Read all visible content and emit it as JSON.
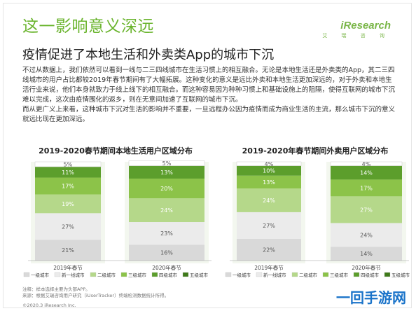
{
  "header": {
    "headline": "这一影响意义深远",
    "subhead": "疫情促进了本地生活和外卖类App的城市下沉",
    "logo_word": "iResearch",
    "logo_sub": "艾 瑞 咨 询"
  },
  "body": {
    "paragraph_1": "不过从数据上，我们依然可以看到一线与二三四线城市在生活习惯上的相互融合。无论是本地生活还是外卖类的App，其二三四线城市的用户占比都较2019年春节期间有了大幅拓展。这种变化的意义是远比外卖和本地生活更加深远的，对于外卖和本地生活行业来说，他们本身就致力于线上线下的相互融合。而这种容易因为种种习惯上和基础设施上的阻隔，使得互联网的城市下沉难以完成，这次由疫情围化的返乡，则在无意间加速了互联网的城市下沉。",
    "paragraph_2": "而从更广义上来看，这种城市下沉对生活的影响并不重要，一旦远程办公因为疫情而成为商业生活的主流，那么城市下沉的意义就远比现在更加深远。"
  },
  "colors": {
    "tier1": "#d9d9d9",
    "tier2": "#ebebeb",
    "tier3": "#b5d88a",
    "tier4": "#8cc349",
    "tier5": "#5c9e2c",
    "accent": "#6ab42d"
  },
  "chart_data": [
    {
      "type": "bar",
      "stacked": true,
      "title": "2019-2020春节期间本地生活用户区域分布",
      "categories": [
        "2019年春节",
        "2020年春节"
      ],
      "series": [
        {
          "name": "一级城市",
          "values": [
            21,
            16
          ]
        },
        {
          "name": "新一线城市",
          "values": [
            27,
            23
          ]
        },
        {
          "name": "二级城市",
          "values": [
            19,
            24
          ]
        },
        {
          "name": "三级城市",
          "values": [
            17,
            20
          ]
        },
        {
          "name": "四级城市",
          "values": [
            11,
            13
          ]
        },
        {
          "name": "五级城市",
          "values": [
            5,
            5
          ]
        }
      ],
      "data_labels": [
        "21%",
        "27%",
        "19%",
        "17%",
        "11%",
        "5%",
        "16%",
        "23%",
        "24%",
        "20%",
        "13%",
        "5%"
      ],
      "ylim": [
        0,
        100
      ],
      "legend": "bottom"
    },
    {
      "type": "bar",
      "stacked": true,
      "title": "2019-2020年春节期间外卖用户区域分布",
      "categories": [
        "2019年春节",
        "2020年春节"
      ],
      "series": [
        {
          "name": "一级城市",
          "values": [
            22,
            14
          ]
        },
        {
          "name": "新一线城市",
          "values": [
            27,
            24
          ]
        },
        {
          "name": "二级城市",
          "values": [
            24,
            27
          ]
        },
        {
          "name": "三级城市",
          "values": [
            13,
            17
          ]
        },
        {
          "name": "四级城市",
          "values": [
            10,
            14
          ]
        },
        {
          "name": "五级城市",
          "values": [
            4,
            4
          ]
        }
      ],
      "data_labels": [
        "22%",
        "27%",
        "24%",
        "13%",
        "10%",
        "4%",
        "14%",
        "24%",
        "27%",
        "17%",
        "14%",
        "4%"
      ],
      "ylim": [
        0,
        100
      ],
      "legend": "bottom"
    }
  ],
  "footnote": {
    "line_1": "注释：样本选择主要为头部APP。",
    "line_2": "来源：根据艾瑞咨询用户研究（iUserTracker）终端检测数据统计所得。"
  },
  "copyright": "©2020.3 iResearch Inc.",
  "watermark": "一回手游网"
}
